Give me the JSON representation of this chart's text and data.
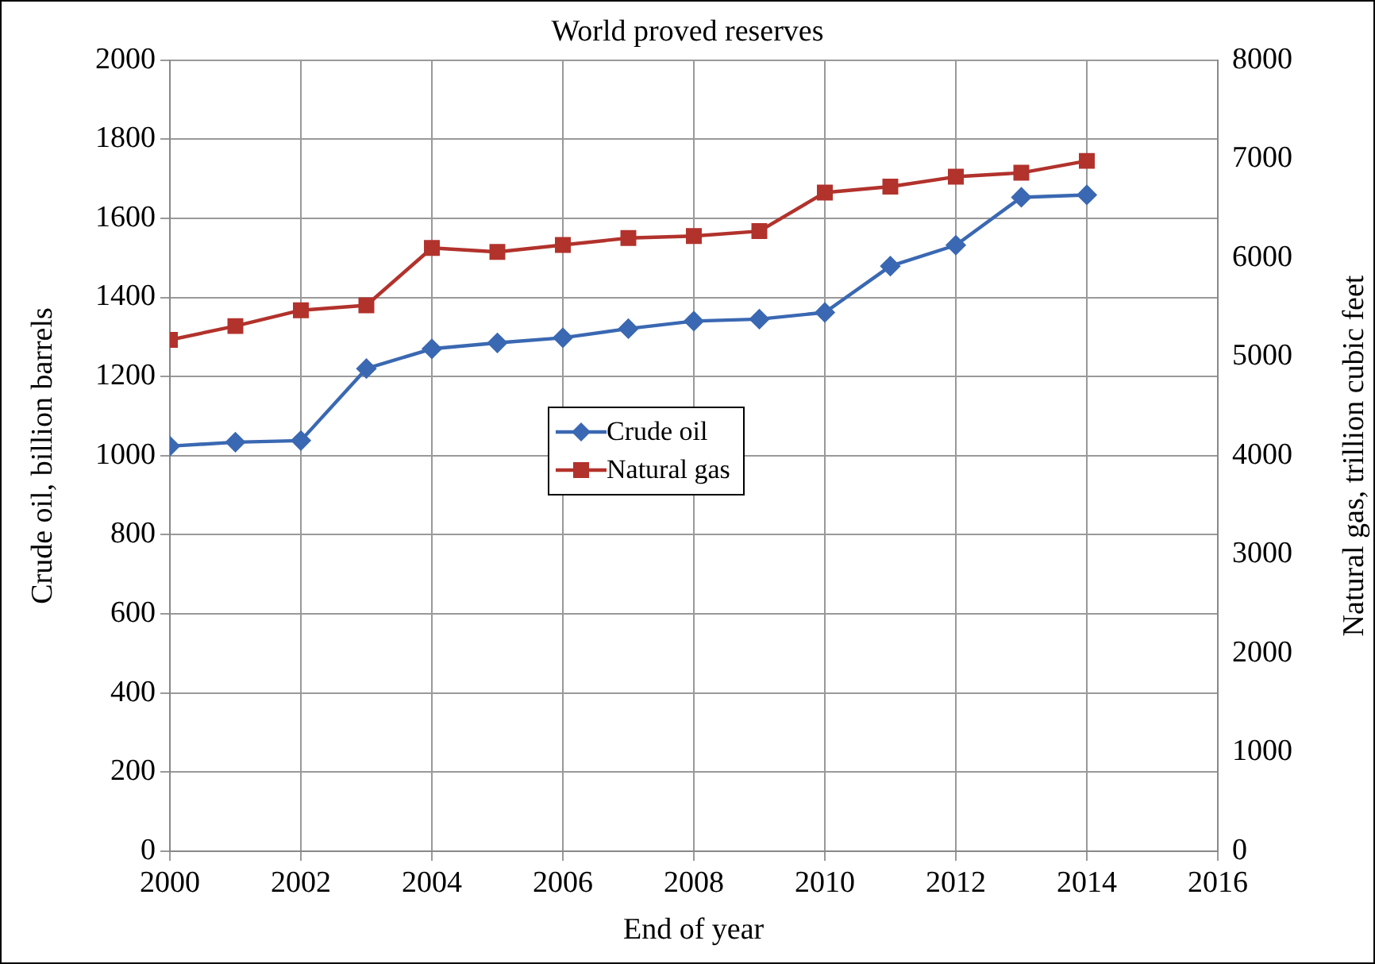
{
  "chart_data": {
    "type": "line",
    "title": "World proved reserves",
    "xlabel": "End of year",
    "ylabel": "Crude oil, billion barrels",
    "y2label": "Natural gas, trillion cubic feet",
    "x": [
      2000,
      2001,
      2002,
      2003,
      2004,
      2005,
      2006,
      2007,
      2008,
      2009,
      2010,
      2011,
      2012,
      2013,
      2014
    ],
    "series": [
      {
        "name": "Crude oil",
        "color": "#3a68b2",
        "marker": "diamond",
        "values": [
          1024,
          1034,
          1038,
          1220,
          1270,
          1285,
          1298,
          1321,
          1340,
          1345,
          1362,
          1479,
          1532,
          1653,
          1659
        ]
      },
      {
        "name": "Natural gas",
        "color": "#b2322c",
        "marker": "square",
        "axis": "y2",
        "values": [
          5170,
          5310,
          5470,
          5520,
          6100,
          6060,
          6130,
          6200,
          6220,
          6270,
          6660,
          6720,
          6820,
          6860,
          6980
        ]
      }
    ],
    "xlim": [
      2000,
      2016
    ],
    "xticks": [
      2000,
      2002,
      2004,
      2006,
      2008,
      2010,
      2012,
      2014,
      2016
    ],
    "ylim": [
      0,
      2000
    ],
    "yticks": [
      0,
      200,
      400,
      600,
      800,
      1000,
      1200,
      1400,
      1600,
      1800,
      2000
    ],
    "y2lim": [
      0,
      8000
    ],
    "y2ticks": [
      0,
      1000,
      2000,
      3000,
      4000,
      5000,
      6000,
      7000,
      8000
    ],
    "grid": true,
    "legend": "center"
  }
}
